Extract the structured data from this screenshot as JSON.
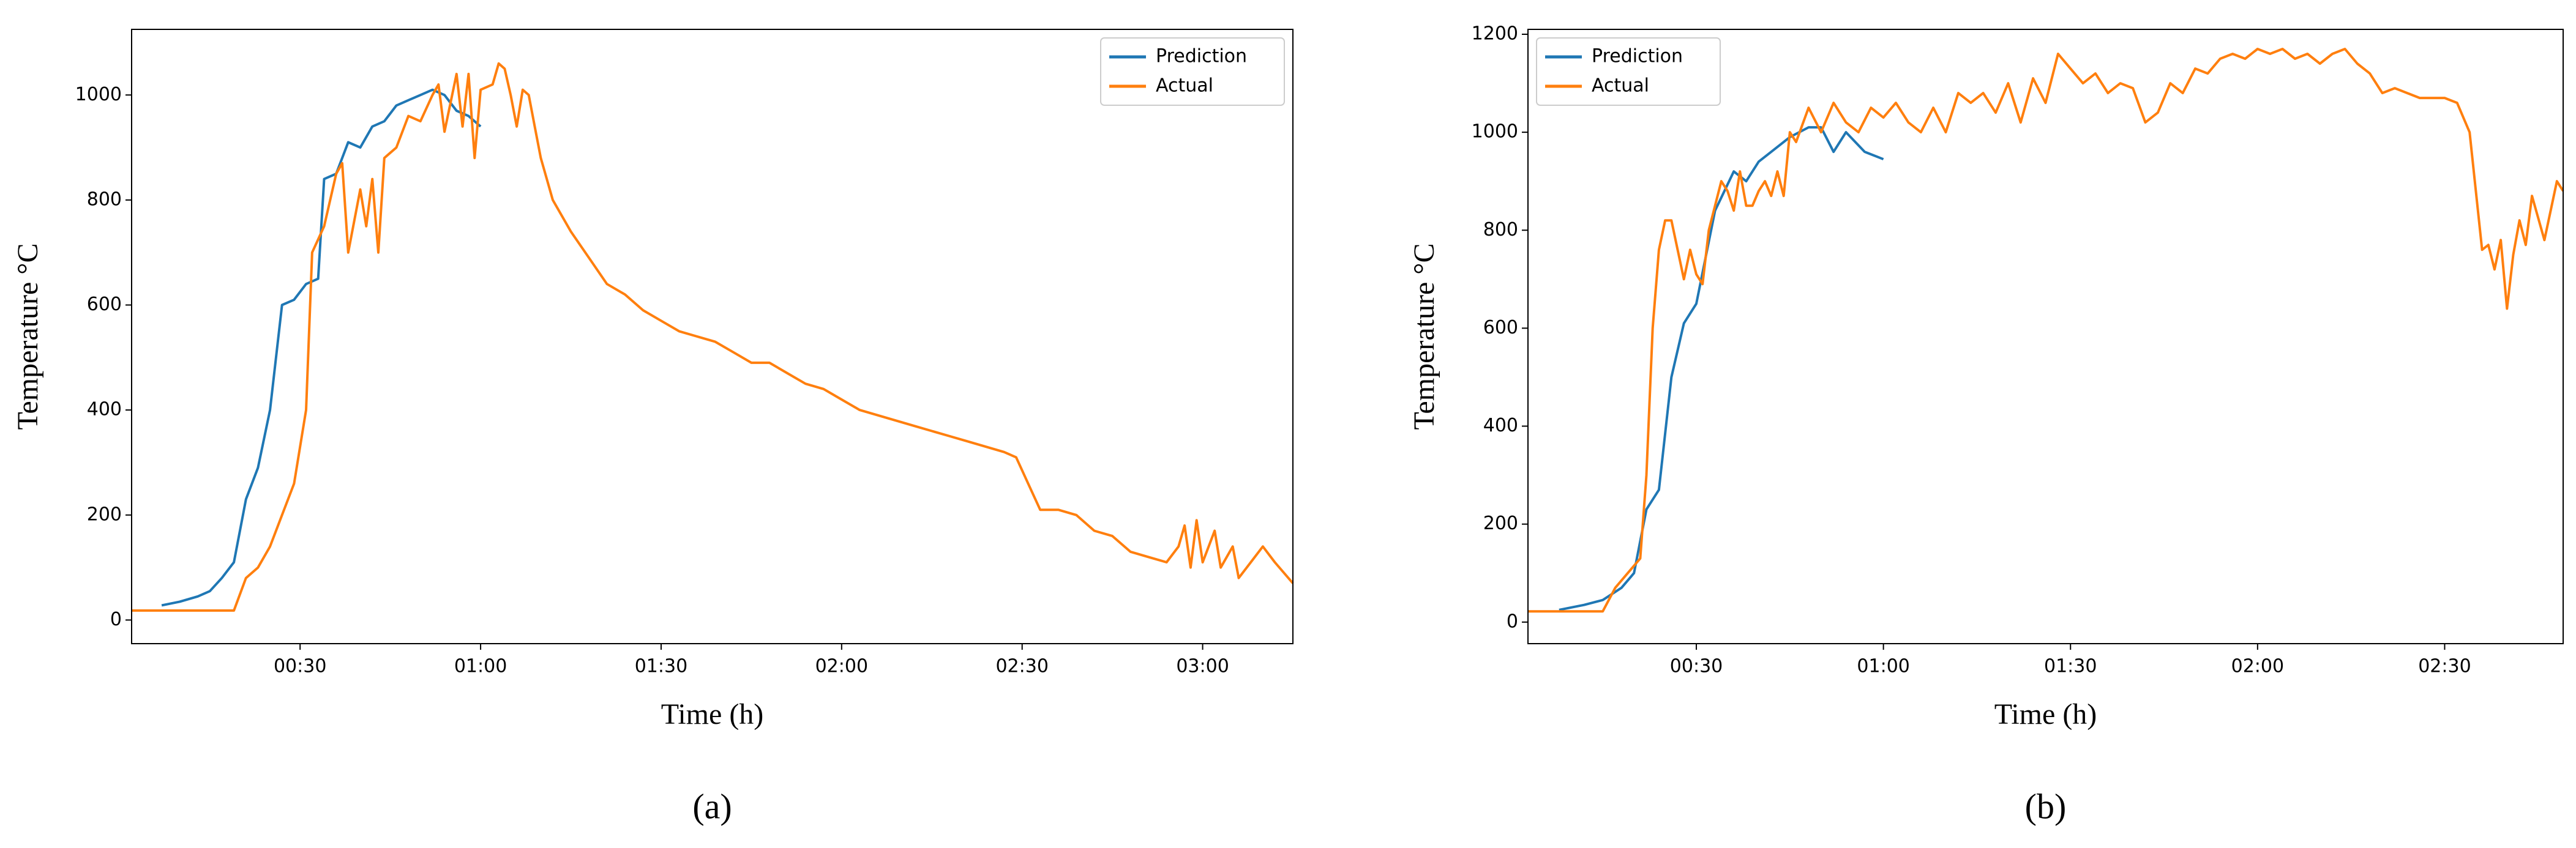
{
  "chart_data": [
    {
      "type": "line",
      "caption": "(a)",
      "xlabel": "Time (h)",
      "ylabel": "Temperature °C",
      "xlim": [
        2,
        195
      ],
      "ylim": [
        -45,
        1125
      ],
      "xticks": [
        {
          "value": 30,
          "label": "00:30"
        },
        {
          "value": 60,
          "label": "01:00"
        },
        {
          "value": 90,
          "label": "01:30"
        },
        {
          "value": 120,
          "label": "02:00"
        },
        {
          "value": 150,
          "label": "02:30"
        },
        {
          "value": 180,
          "label": "03:00"
        }
      ],
      "yticks": [
        0,
        200,
        400,
        600,
        800,
        1000
      ],
      "legend": "upper right",
      "series": [
        {
          "name": "Prediction",
          "color": "#1f77b4",
          "x": [
            7,
            10,
            13,
            15,
            17,
            19,
            21,
            23,
            25,
            27,
            29,
            31,
            33,
            34,
            36,
            38,
            40,
            42,
            44,
            46,
            48,
            50,
            52,
            54,
            56,
            58,
            60
          ],
          "values": [
            28,
            35,
            45,
            55,
            80,
            110,
            230,
            290,
            400,
            600,
            610,
            640,
            650,
            840,
            850,
            910,
            900,
            940,
            950,
            980,
            990,
            1000,
            1010,
            1000,
            970,
            960,
            940
          ]
        },
        {
          "name": "Actual",
          "color": "#ff7f0e",
          "x": [
            2,
            10,
            19,
            21,
            23,
            25,
            27,
            29,
            31,
            32,
            34,
            36,
            37,
            38,
            40,
            41,
            42,
            43,
            44,
            46,
            48,
            50,
            52,
            53,
            54,
            56,
            57,
            58,
            59,
            60,
            62,
            63,
            64,
            65,
            66,
            67,
            68,
            69,
            70,
            72,
            75,
            78,
            81,
            84,
            87,
            90,
            93,
            96,
            99,
            102,
            105,
            108,
            111,
            114,
            117,
            120,
            123,
            126,
            129,
            132,
            135,
            138,
            141,
            144,
            147,
            149,
            151,
            153,
            156,
            159,
            162,
            165,
            168,
            171,
            174,
            176,
            177,
            178,
            179,
            180,
            182,
            183,
            185,
            186,
            188,
            190,
            192,
            195
          ],
          "values": [
            18,
            18,
            18,
            80,
            100,
            140,
            200,
            260,
            400,
            700,
            750,
            850,
            870,
            700,
            820,
            750,
            840,
            700,
            880,
            900,
            960,
            950,
            1000,
            1020,
            930,
            1040,
            940,
            1040,
            880,
            1010,
            1020,
            1060,
            1050,
            1000,
            940,
            1010,
            1000,
            940,
            880,
            800,
            740,
            690,
            640,
            620,
            590,
            570,
            550,
            540,
            530,
            510,
            490,
            490,
            470,
            450,
            440,
            420,
            400,
            390,
            380,
            370,
            360,
            350,
            340,
            330,
            320,
            310,
            260,
            210,
            210,
            200,
            170,
            160,
            130,
            120,
            110,
            140,
            180,
            100,
            190,
            110,
            170,
            100,
            140,
            80,
            110,
            140,
            110,
            70
          ]
        }
      ]
    },
    {
      "type": "line",
      "caption": "(b)",
      "xlabel": "Time (h)",
      "ylabel": "Temperature °C",
      "xlim": [
        3,
        169
      ],
      "ylim": [
        -44,
        1210
      ],
      "xticks": [
        {
          "value": 30,
          "label": "00:30"
        },
        {
          "value": 60,
          "label": "01:00"
        },
        {
          "value": 90,
          "label": "01:30"
        },
        {
          "value": 120,
          "label": "02:00"
        },
        {
          "value": 150,
          "label": "02:30"
        }
      ],
      "yticks": [
        0,
        200,
        400,
        600,
        800,
        1000,
        1200
      ],
      "legend": "upper left",
      "series": [
        {
          "name": "Prediction",
          "color": "#1f77b4",
          "x": [
            8,
            12,
            15,
            18,
            20,
            22,
            24,
            26,
            28,
            30,
            33,
            36,
            38,
            40,
            42,
            45,
            48,
            50,
            52,
            54,
            57,
            60
          ],
          "values": [
            25,
            35,
            45,
            70,
            100,
            230,
            270,
            500,
            610,
            650,
            840,
            920,
            900,
            940,
            960,
            990,
            1010,
            1010,
            960,
            1000,
            960,
            945
          ]
        },
        {
          "name": "Actual",
          "color": "#ff7f0e",
          "x": [
            3,
            10,
            15,
            17,
            19,
            21,
            22,
            23,
            24,
            25,
            26,
            27,
            28,
            29,
            30,
            31,
            32,
            33,
            34,
            35,
            36,
            37,
            38,
            39,
            40,
            41,
            42,
            43,
            44,
            45,
            46,
            48,
            50,
            52,
            54,
            56,
            58,
            60,
            62,
            64,
            66,
            68,
            70,
            72,
            74,
            76,
            78,
            80,
            82,
            84,
            86,
            88,
            90,
            92,
            94,
            96,
            98,
            100,
            102,
            104,
            106,
            108,
            110,
            112,
            114,
            116,
            118,
            120,
            122,
            124,
            126,
            128,
            130,
            132,
            134,
            136,
            138,
            140,
            142,
            144,
            146,
            148,
            150,
            152,
            154,
            155,
            156,
            157,
            158,
            159,
            160,
            161,
            162,
            163,
            164,
            166,
            168,
            169
          ],
          "values": [
            22,
            22,
            22,
            70,
            100,
            130,
            300,
            600,
            760,
            820,
            820,
            760,
            700,
            760,
            710,
            690,
            800,
            850,
            900,
            880,
            840,
            920,
            850,
            850,
            880,
            900,
            870,
            920,
            870,
            1000,
            980,
            1050,
            1000,
            1060,
            1020,
            1000,
            1050,
            1030,
            1060,
            1020,
            1000,
            1050,
            1000,
            1080,
            1060,
            1080,
            1040,
            1100,
            1020,
            1110,
            1060,
            1160,
            1130,
            1100,
            1120,
            1080,
            1100,
            1090,
            1020,
            1040,
            1100,
            1080,
            1130,
            1120,
            1150,
            1160,
            1150,
            1170,
            1160,
            1170,
            1150,
            1160,
            1140,
            1160,
            1170,
            1140,
            1120,
            1080,
            1090,
            1080,
            1070,
            1070,
            1070,
            1060,
            1000,
            880,
            760,
            770,
            720,
            780,
            640,
            750,
            820,
            770,
            870,
            780,
            900,
            880
          ]
        }
      ]
    }
  ]
}
